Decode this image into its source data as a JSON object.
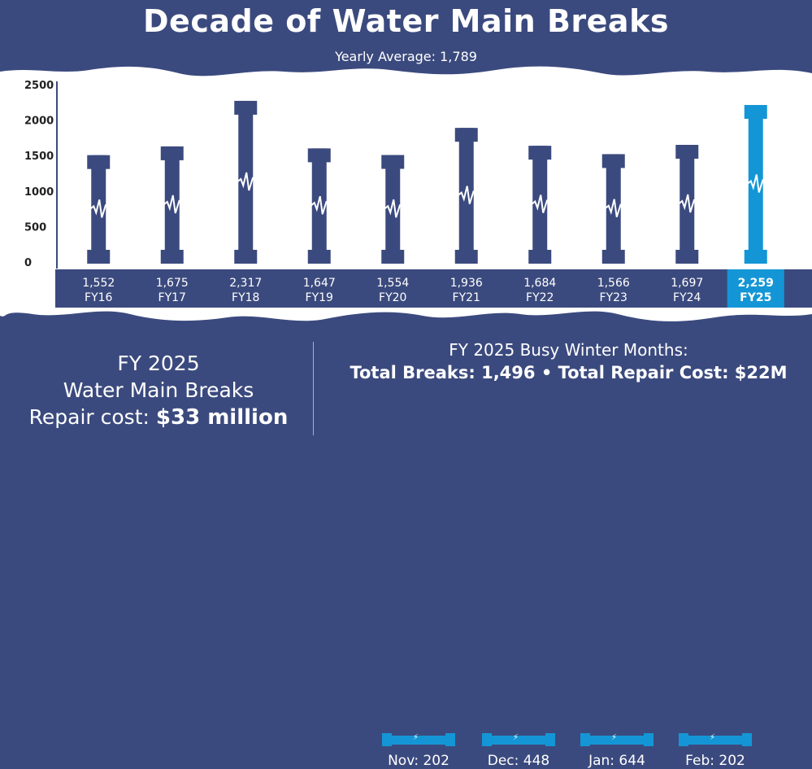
{
  "header": {
    "title": "Decade of Water Main Breaks",
    "subtitle": "Yearly Average: 1,789"
  },
  "colors": {
    "navy": "#3b4a7e",
    "highlight": "#1496d6",
    "background": "#ffffff"
  },
  "chart_data": {
    "type": "bar",
    "title": "Decade of Water Main Breaks",
    "subtitle": "Yearly Average: 1,789",
    "categories": [
      "FY16",
      "FY17",
      "FY18",
      "FY19",
      "FY20",
      "FY21",
      "FY22",
      "FY23",
      "FY24",
      "FY25"
    ],
    "values": [
      1552,
      1675,
      2317,
      1647,
      1554,
      1936,
      1684,
      1566,
      1697,
      2259
    ],
    "value_labels": [
      "1,552",
      "1,675",
      "2,317",
      "1,647",
      "1,554",
      "1,936",
      "1,684",
      "1,566",
      "1,697",
      "2,259"
    ],
    "highlighted": "FY25",
    "ylim": [
      0,
      2500
    ],
    "yticks": [
      "0",
      "500",
      "1000",
      "1500",
      "2000",
      "2500"
    ],
    "grid": false,
    "bar_style": "pipe with break icon"
  },
  "summary": {
    "line1": "FY 2025",
    "line2": "Water Main Breaks",
    "cost_label": "Repair cost:",
    "cost_value": "$33 million"
  },
  "winter": {
    "heading": "FY 2025 Busy Winter Months:",
    "totals": "Total Breaks: 1,496 • Total Repair Cost: $22M",
    "months": [
      {
        "label": "Nov: 202"
      },
      {
        "label": "Dec: 448"
      },
      {
        "label": "Jan: 644"
      },
      {
        "label": "Feb: 202"
      }
    ]
  }
}
